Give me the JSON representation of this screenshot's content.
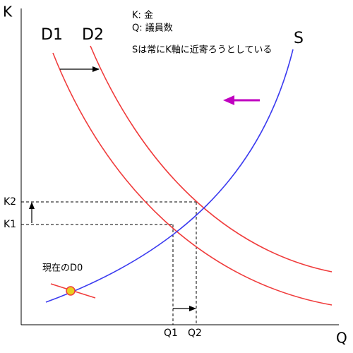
{
  "axes": {
    "y_label": "K",
    "x_label": "Q"
  },
  "legend": {
    "k": "K: 金",
    "q": "Q: 議員数"
  },
  "note": "Sは常にK軸に近寄ろうとしている",
  "curves": {
    "d1": "D1",
    "d2": "D2",
    "s": "S",
    "d0": "現在のD0"
  },
  "ticks": {
    "k2": "K2",
    "k1": "K1",
    "q1": "Q1",
    "q2": "Q2"
  }
}
